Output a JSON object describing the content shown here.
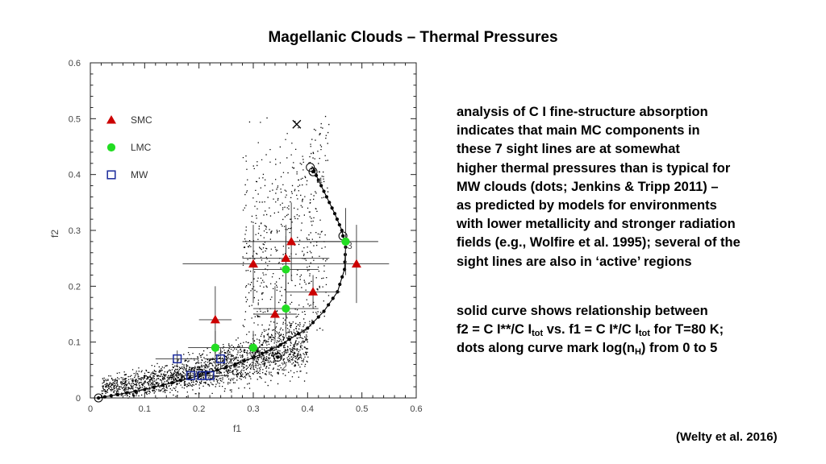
{
  "slide_title": "Magellanic Clouds – Thermal Pressures",
  "paragraph1_lines": [
    "analysis of C I fine-structure absorption",
    "indicates that main MC components in",
    "these 7 sight lines are at somewhat",
    "higher thermal pressures than is typical for",
    "MW clouds (dots; Jenkins & Tripp 2011) –",
    "as predicted by models for environments",
    "with lower metallicity and stronger radiation",
    "fields (e.g., Wolfire et al. 1995); several of the",
    "sight lines are also in ‘active’ regions"
  ],
  "paragraph2": {
    "line1": "solid curve shows relationship between",
    "line2_a": "f2 = C I**/C I",
    "sub_tot": "tot",
    "line2_b": " vs. f1 = C I*/C I",
    "line2_c": " for T=80 K;",
    "line3_a": "dots along curve mark log(n",
    "sub_h": "H",
    "line3_b": ") from 0 to 5"
  },
  "citation": "(Welty et al. 2016)",
  "chart_data": {
    "type": "scatter",
    "xlabel": "f1",
    "ylabel": "f2",
    "xlim": [
      0,
      0.6
    ],
    "ylim": [
      0,
      0.6
    ],
    "xticks": [
      "0",
      "0.1",
      "0.2",
      "0.3",
      "0.4",
      "0.5",
      "0.6"
    ],
    "yticks": [
      "0",
      "0.1",
      "0.2",
      "0.3",
      "0.4",
      "0.5",
      "0.6"
    ],
    "legend": [
      {
        "name": "SMC",
        "marker": "triangle",
        "color": "#cc0000"
      },
      {
        "name": "LMC",
        "marker": "circle",
        "color": "#22dd22"
      },
      {
        "name": "MW",
        "marker": "square",
        "color": "#1a2a9c"
      }
    ],
    "series": [
      {
        "name": "SMC",
        "marker": "triangle",
        "color": "#cc0000",
        "points": [
          {
            "x": 0.23,
            "y": 0.14,
            "xerr": 0.03,
            "yerr": 0.06
          },
          {
            "x": 0.3,
            "y": 0.24,
            "xerr": 0.13,
            "yerr": 0.07
          },
          {
            "x": 0.34,
            "y": 0.15,
            "xerr": 0.04,
            "yerr": 0.05
          },
          {
            "x": 0.36,
            "y": 0.25,
            "xerr": 0.08,
            "yerr": 0.06
          },
          {
            "x": 0.37,
            "y": 0.28,
            "xerr": 0.09,
            "yerr": 0.07
          },
          {
            "x": 0.41,
            "y": 0.19,
            "xerr": 0.05,
            "yerr": 0.03
          },
          {
            "x": 0.49,
            "y": 0.24,
            "xerr": 0.06,
            "yerr": 0.07
          }
        ]
      },
      {
        "name": "LMC",
        "marker": "circle",
        "color": "#22dd22",
        "points": [
          {
            "x": 0.23,
            "y": 0.09,
            "xerr": 0.05,
            "yerr": 0.03
          },
          {
            "x": 0.3,
            "y": 0.09,
            "xerr": 0.04,
            "yerr": 0.03
          },
          {
            "x": 0.36,
            "y": 0.16,
            "xerr": 0.06,
            "yerr": 0.05
          },
          {
            "x": 0.36,
            "y": 0.23,
            "xerr": 0.06,
            "yerr": 0.06
          },
          {
            "x": 0.47,
            "y": 0.28,
            "xerr": 0.06,
            "yerr": 0.06
          }
        ]
      },
      {
        "name": "MW",
        "marker": "square",
        "color": "#1a2a9c",
        "points": [
          {
            "x": 0.16,
            "y": 0.07,
            "xerr": 0.04,
            "yerr": 0.015
          },
          {
            "x": 0.185,
            "y": 0.04,
            "xerr": 0.03,
            "yerr": 0.01
          },
          {
            "x": 0.205,
            "y": 0.04,
            "xerr": 0.03,
            "yerr": 0.01
          },
          {
            "x": 0.22,
            "y": 0.04,
            "xerr": 0.03,
            "yerr": 0.01
          },
          {
            "x": 0.24,
            "y": 0.07,
            "xerr": 0.03,
            "yerr": 0.02
          }
        ]
      }
    ],
    "curve": {
      "label": "T=80 K",
      "points": [
        [
          0.015,
          0.0
        ],
        [
          0.05,
          0.006
        ],
        [
          0.1,
          0.015
        ],
        [
          0.15,
          0.027
        ],
        [
          0.2,
          0.04
        ],
        [
          0.25,
          0.055
        ],
        [
          0.3,
          0.072
        ],
        [
          0.35,
          0.095
        ],
        [
          0.4,
          0.125
        ],
        [
          0.43,
          0.155
        ],
        [
          0.455,
          0.19
        ],
        [
          0.468,
          0.23
        ],
        [
          0.47,
          0.27
        ],
        [
          0.463,
          0.3
        ],
        [
          0.45,
          0.33
        ],
        [
          0.435,
          0.36
        ],
        [
          0.42,
          0.39
        ],
        [
          0.408,
          0.415
        ]
      ],
      "markers_log_nH": [
        {
          "label": "2",
          "x": 0.345,
          "y": 0.073
        },
        {
          "label": "3",
          "x": 0.465,
          "y": 0.29
        },
        {
          "label": "4",
          "x": 0.41,
          "y": 0.405
        }
      ],
      "endpoint_circles": [
        {
          "x": 0.015,
          "y": 0.0
        },
        {
          "x": 0.405,
          "y": 0.413
        }
      ]
    },
    "x_marker": {
      "x": 0.38,
      "y": 0.49
    }
  }
}
